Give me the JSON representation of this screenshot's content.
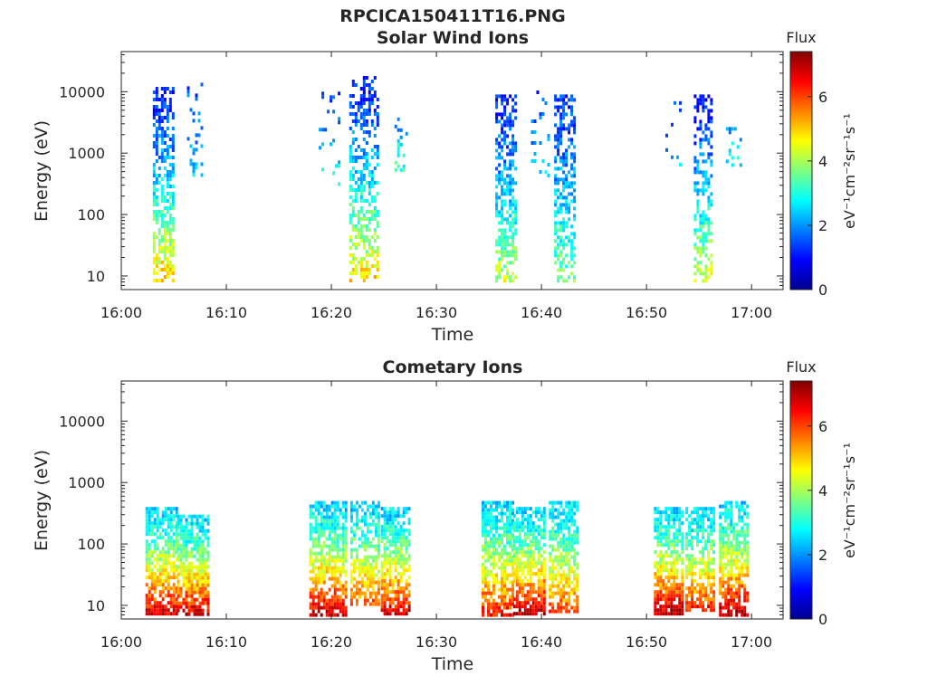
{
  "figure_title": "RPCICA150411T16.PNG",
  "chart_data": [
    {
      "type": "heatmap",
      "title": "Solar Wind Ions",
      "xlabel": "Time",
      "ylabel": "Energy (eV)",
      "x_ticks": [
        "16:00",
        "16:10",
        "16:20",
        "16:30",
        "16:40",
        "16:50",
        "17:00"
      ],
      "xlim_minutes_after_16": [
        0,
        63
      ],
      "y_ticks": [
        "10",
        "100",
        "1000",
        "10000"
      ],
      "yscale": "log",
      "ylim": [
        6,
        45000
      ],
      "colorbar": {
        "label_top": "Flux",
        "unit_label": "eV⁻¹cm⁻²sr⁻¹s⁻¹",
        "ticks": [
          "0",
          "2",
          "4",
          "6"
        ],
        "range": [
          0,
          7.4
        ],
        "colormap": "jet"
      },
      "bursts": [
        {
          "t": 4.0,
          "width": 2.0,
          "emin": 8,
          "emax": 12000,
          "fmin": 1.1,
          "fmax": 5.2,
          "density": 0.55
        },
        {
          "t": 7.0,
          "width": 1.5,
          "emin": 400,
          "emax": 14000,
          "fmin": 1.5,
          "fmax": 2.6,
          "density": 0.15
        },
        {
          "t": 23.0,
          "width": 2.6,
          "emin": 8,
          "emax": 18000,
          "fmin": 1.2,
          "fmax": 5.0,
          "density": 0.5
        },
        {
          "t": 19.8,
          "width": 2.0,
          "emin": 300,
          "emax": 10000,
          "fmin": 1.6,
          "fmax": 3.0,
          "density": 0.15
        },
        {
          "t": 26.6,
          "width": 1.2,
          "emin": 500,
          "emax": 5000,
          "fmin": 2.0,
          "fmax": 3.4,
          "density": 0.2
        },
        {
          "t": 36.6,
          "width": 2.0,
          "emin": 8,
          "emax": 9000,
          "fmin": 1.2,
          "fmax": 4.3,
          "density": 0.55
        },
        {
          "t": 42.2,
          "width": 2.0,
          "emin": 8,
          "emax": 9000,
          "fmin": 1.3,
          "fmax": 3.8,
          "density": 0.5
        },
        {
          "t": 39.8,
          "width": 1.6,
          "emin": 400,
          "emax": 12000,
          "fmin": 1.4,
          "fmax": 2.6,
          "density": 0.12
        },
        {
          "t": 55.4,
          "width": 1.8,
          "emin": 8,
          "emax": 9000,
          "fmin": 1.1,
          "fmax": 4.5,
          "density": 0.5
        },
        {
          "t": 52.5,
          "width": 1.4,
          "emin": 400,
          "emax": 7000,
          "fmin": 1.6,
          "fmax": 2.6,
          "density": 0.12
        },
        {
          "t": 58.3,
          "width": 1.5,
          "emin": 600,
          "emax": 6000,
          "fmin": 1.8,
          "fmax": 3.0,
          "density": 0.15
        }
      ]
    },
    {
      "type": "heatmap",
      "title": "Cometary Ions",
      "xlabel": "Time",
      "ylabel": "Energy (eV)",
      "x_ticks": [
        "16:00",
        "16:10",
        "16:20",
        "16:30",
        "16:40",
        "16:50",
        "17:00"
      ],
      "xlim_minutes_after_16": [
        0,
        63
      ],
      "y_ticks": [
        "10",
        "100",
        "1000",
        "10000"
      ],
      "yscale": "log",
      "ylim": [
        6,
        45000
      ],
      "colorbar": {
        "label_top": "Flux",
        "unit_label": "eV⁻¹cm⁻²sr⁻¹s⁻¹",
        "ticks": [
          "0",
          "2",
          "4",
          "6"
        ],
        "range": [
          0,
          7.4
        ],
        "colormap": "jet"
      },
      "bursts": [
        {
          "t": 3.8,
          "width": 3.0,
          "emin": 7,
          "emax": 400,
          "fmin": 2.5,
          "fmax": 7.0,
          "density": 0.75
        },
        {
          "t": 6.8,
          "width": 3.0,
          "emin": 7,
          "emax": 300,
          "fmin": 2.5,
          "fmax": 7.0,
          "density": 0.75
        },
        {
          "t": 19.6,
          "width": 3.4,
          "emin": 7,
          "emax": 500,
          "fmin": 2.5,
          "fmax": 7.0,
          "density": 0.75
        },
        {
          "t": 23.2,
          "width": 2.8,
          "emin": 10,
          "emax": 500,
          "fmin": 2.5,
          "fmax": 6.0,
          "density": 0.7
        },
        {
          "t": 26.0,
          "width": 2.6,
          "emin": 7,
          "emax": 400,
          "fmin": 2.5,
          "fmax": 7.0,
          "density": 0.75
        },
        {
          "t": 35.8,
          "width": 3.0,
          "emin": 7,
          "emax": 500,
          "fmin": 2.5,
          "fmax": 6.5,
          "density": 0.75
        },
        {
          "t": 38.8,
          "width": 3.0,
          "emin": 7,
          "emax": 400,
          "fmin": 2.5,
          "fmax": 7.2,
          "density": 0.75
        },
        {
          "t": 42.0,
          "width": 2.6,
          "emin": 8,
          "emax": 500,
          "fmin": 2.5,
          "fmax": 6.0,
          "density": 0.7
        },
        {
          "t": 52.0,
          "width": 2.6,
          "emin": 7,
          "emax": 400,
          "fmin": 2.5,
          "fmax": 7.2,
          "density": 0.75
        },
        {
          "t": 55.0,
          "width": 2.6,
          "emin": 8,
          "emax": 400,
          "fmin": 2.5,
          "fmax": 6.5,
          "density": 0.7
        },
        {
          "t": 58.2,
          "width": 2.6,
          "emin": 7,
          "emax": 500,
          "fmin": 2.5,
          "fmax": 7.2,
          "density": 0.75
        }
      ]
    }
  ]
}
